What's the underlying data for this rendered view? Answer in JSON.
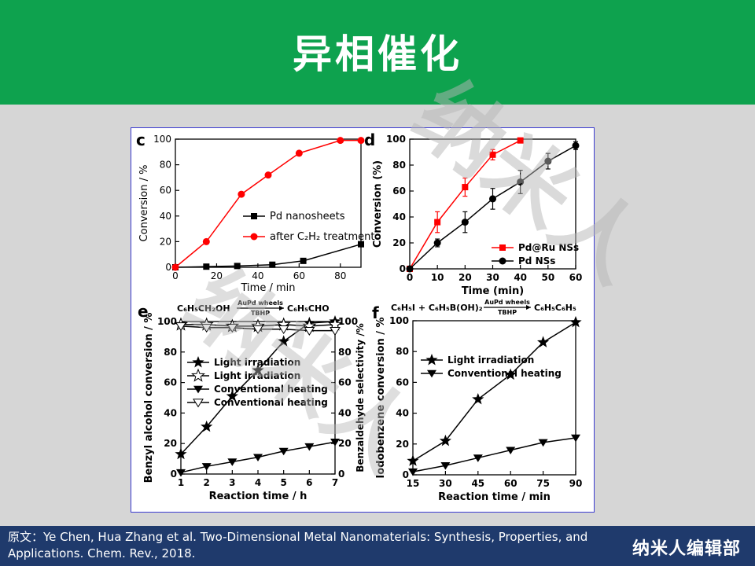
{
  "slide": {
    "title": "异相催化",
    "citation_line1": "原文：Ye Chen, Hua Zhang et al. Two-Dimensional Metal Nanomaterials: Synthesis, Properties, and",
    "citation_line2": "Applications. Chem. Rev., 2018.",
    "brand": "纳米人编辑部",
    "watermark_text": "纳米人",
    "colors": {
      "header": "#0ea24e",
      "footer": "#1f3a6c",
      "background": "#d6d6d6"
    }
  },
  "chart_data": [
    {
      "panel": "c",
      "type": "line",
      "xlabel": "Time / min",
      "ylabel": "Conversion / %",
      "xlim": [
        0,
        90
      ],
      "ylim": [
        0,
        100
      ],
      "xticks": [
        0,
        20,
        40,
        60,
        80
      ],
      "yticks": [
        0,
        20,
        40,
        60,
        80,
        100
      ],
      "legend_loc": "center-right",
      "series": [
        {
          "name": "Pd nanosheets",
          "color": "#000000",
          "marker": "square",
          "x": [
            0,
            15,
            30,
            47,
            62,
            90
          ],
          "values": [
            0,
            0.5,
            1,
            2,
            5,
            18
          ]
        },
        {
          "name": "after C₂H₂ treatment",
          "color": "#ff0000",
          "marker": "circle",
          "x": [
            0,
            15,
            32,
            45,
            60,
            80,
            90
          ],
          "values": [
            0,
            20,
            57,
            72,
            89,
            99,
            99
          ]
        }
      ]
    },
    {
      "panel": "d",
      "type": "line",
      "xlabel": "Time (min)",
      "ylabel": "Conversion (%)",
      "xlim": [
        0,
        60
      ],
      "ylim": [
        0,
        100
      ],
      "xticks": [
        0,
        10,
        20,
        30,
        40,
        50,
        60
      ],
      "yticks": [
        0,
        20,
        40,
        60,
        80,
        100
      ],
      "legend_loc": "bottom-right",
      "series": [
        {
          "name": "Pd@Ru NSs",
          "color": "#ff0000",
          "marker": "square",
          "x": [
            0,
            10,
            20,
            30,
            40
          ],
          "values": [
            0,
            36,
            63,
            88,
            99
          ],
          "errors": [
            0,
            8,
            7,
            4,
            0
          ]
        },
        {
          "name": "Pd NSs",
          "color": "#000000",
          "marker": "circle",
          "x": [
            0,
            10,
            20,
            30,
            40,
            50,
            60
          ],
          "values": [
            0,
            20,
            36,
            54,
            67,
            83,
            95
          ],
          "errors": [
            0,
            3,
            8,
            8,
            9,
            6,
            3
          ]
        }
      ]
    },
    {
      "panel": "e",
      "type": "line",
      "reaction": {
        "reactant": "C₆H₅CH₂OH",
        "catalyst": "AuPd wheels",
        "oxidant": "TBHP",
        "product": "C₆H₅CHO"
      },
      "xlabel": "Reaction time / h",
      "ylabel": "Benzyl alcohol conversion / %",
      "ylabel_right": "Benzaldehyde selectivity /%",
      "xlim": [
        1,
        7
      ],
      "ylim": [
        0,
        100
      ],
      "xticks": [
        1,
        2,
        3,
        4,
        5,
        6,
        7
      ],
      "yticks": [
        0,
        20,
        40,
        60,
        80,
        100
      ],
      "legend_loc": "center-left",
      "series": [
        {
          "name": "Light irradiation",
          "color": "#000000",
          "marker": "star-filled",
          "axis": "left",
          "x": [
            1,
            2,
            3,
            4,
            5,
            6,
            7
          ],
          "values": [
            13,
            31,
            51,
            68,
            87,
            99,
            100
          ]
        },
        {
          "name": "Light irradiation",
          "color": "#000000",
          "marker": "star-open",
          "axis": "right",
          "x": [
            1,
            2,
            3,
            4,
            5,
            6,
            7
          ],
          "values": [
            98,
            98,
            97,
            97,
            98,
            97,
            98
          ]
        },
        {
          "name": "Conventional heating",
          "color": "#000000",
          "marker": "tri-down-filled",
          "axis": "left",
          "x": [
            1,
            2,
            3,
            4,
            5,
            6,
            7
          ],
          "values": [
            1,
            5,
            8,
            11,
            15,
            18,
            21
          ]
        },
        {
          "name": "Conventional heating",
          "color": "#000000",
          "marker": "tri-down-open",
          "axis": "right",
          "x": [
            1,
            2,
            3,
            4,
            5,
            6,
            7
          ],
          "values": [
            97,
            96,
            96,
            95,
            95,
            94,
            94
          ]
        }
      ]
    },
    {
      "panel": "f",
      "type": "line",
      "reaction": {
        "reactants": "C₆H₅I + C₆H₅B(OH)₂",
        "catalyst": "AuPd wheels",
        "oxidant": "TBHP",
        "product": "C₆H₅C₆H₅"
      },
      "xlabel": "Reaction time / min",
      "ylabel": "Iodobenzene conversion / %",
      "xlim": [
        15,
        90
      ],
      "ylim": [
        0,
        100
      ],
      "xticks": [
        15,
        30,
        45,
        60,
        75,
        90
      ],
      "yticks": [
        0,
        20,
        40,
        60,
        80,
        100
      ],
      "legend_loc": "top-left",
      "series": [
        {
          "name": "Light irradiation",
          "color": "#000000",
          "marker": "star-filled",
          "x": [
            15,
            30,
            45,
            60,
            75,
            90
          ],
          "values": [
            9,
            22,
            49,
            65,
            86,
            99
          ]
        },
        {
          "name": "Conventional heating",
          "color": "#000000",
          "marker": "tri-down-filled",
          "x": [
            15,
            30,
            45,
            60,
            75,
            90
          ],
          "values": [
            2,
            6,
            11,
            16,
            21,
            24
          ]
        }
      ]
    }
  ]
}
